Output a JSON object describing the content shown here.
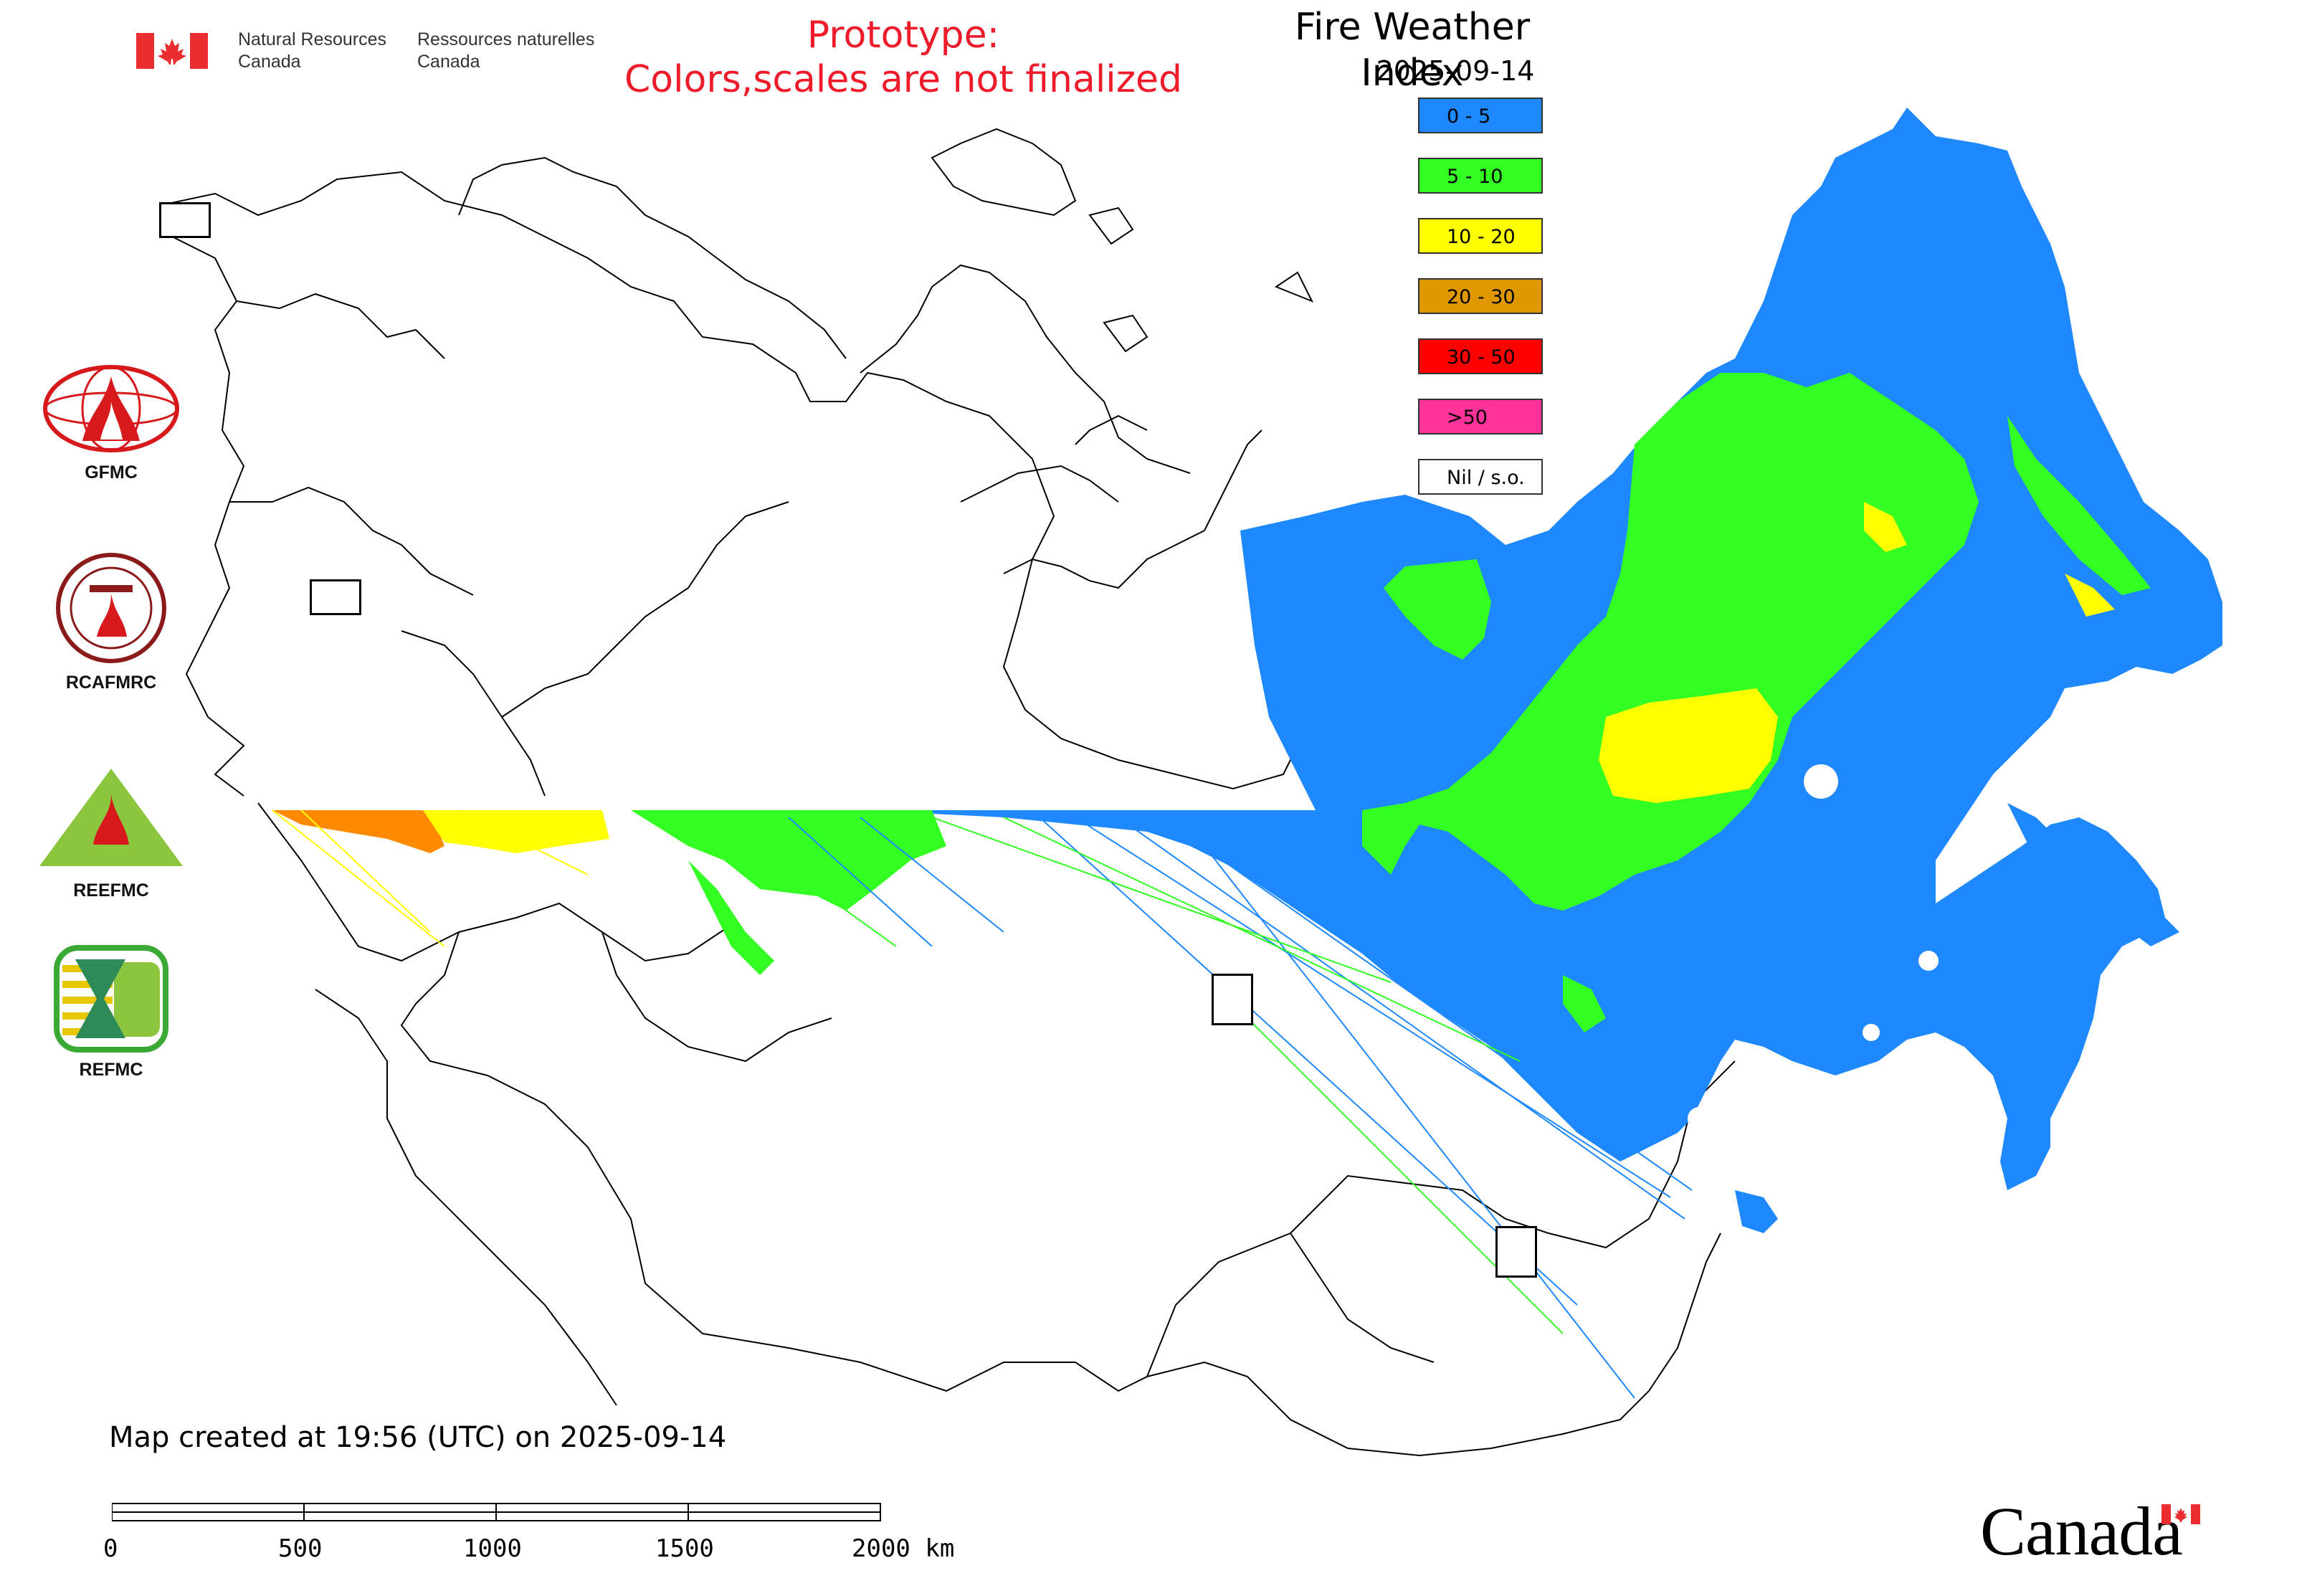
{
  "header": {
    "gov_en": [
      "Natural Resources",
      "Canada"
    ],
    "gov_fr": [
      "Ressources naturelles",
      "Canada"
    ],
    "prototype_lines": [
      "Prototype:",
      "Colors,scales are not finalized"
    ]
  },
  "map": {
    "title": "Fire Weather Index",
    "date": "2025-09-14"
  },
  "legend": [
    {
      "label": "0 - 5",
      "color": "#1e88ff"
    },
    {
      "label": "5 - 10",
      "color": "#33ff22"
    },
    {
      "label": "10 - 20",
      "color": "#ffff00"
    },
    {
      "label": "20 - 30",
      "color": "#e09800"
    },
    {
      "label": "30 - 50",
      "color": "#ff0000"
    },
    {
      "label": ">50",
      "color": "#ff3399"
    },
    {
      "label": "Nil / s.o.",
      "color": "#ffffff"
    }
  ],
  "partners": [
    {
      "name": "GFMC"
    },
    {
      "name": "RCAFMRC"
    },
    {
      "name": "REEFMC"
    },
    {
      "name": "REFMC"
    }
  ],
  "footer": {
    "created": "Map created at 19:56 (UTC) on 2025-09-14",
    "scale_labels": [
      "0",
      "500",
      "1000",
      "1500",
      "2000 km"
    ]
  },
  "wordmark": "Canada"
}
